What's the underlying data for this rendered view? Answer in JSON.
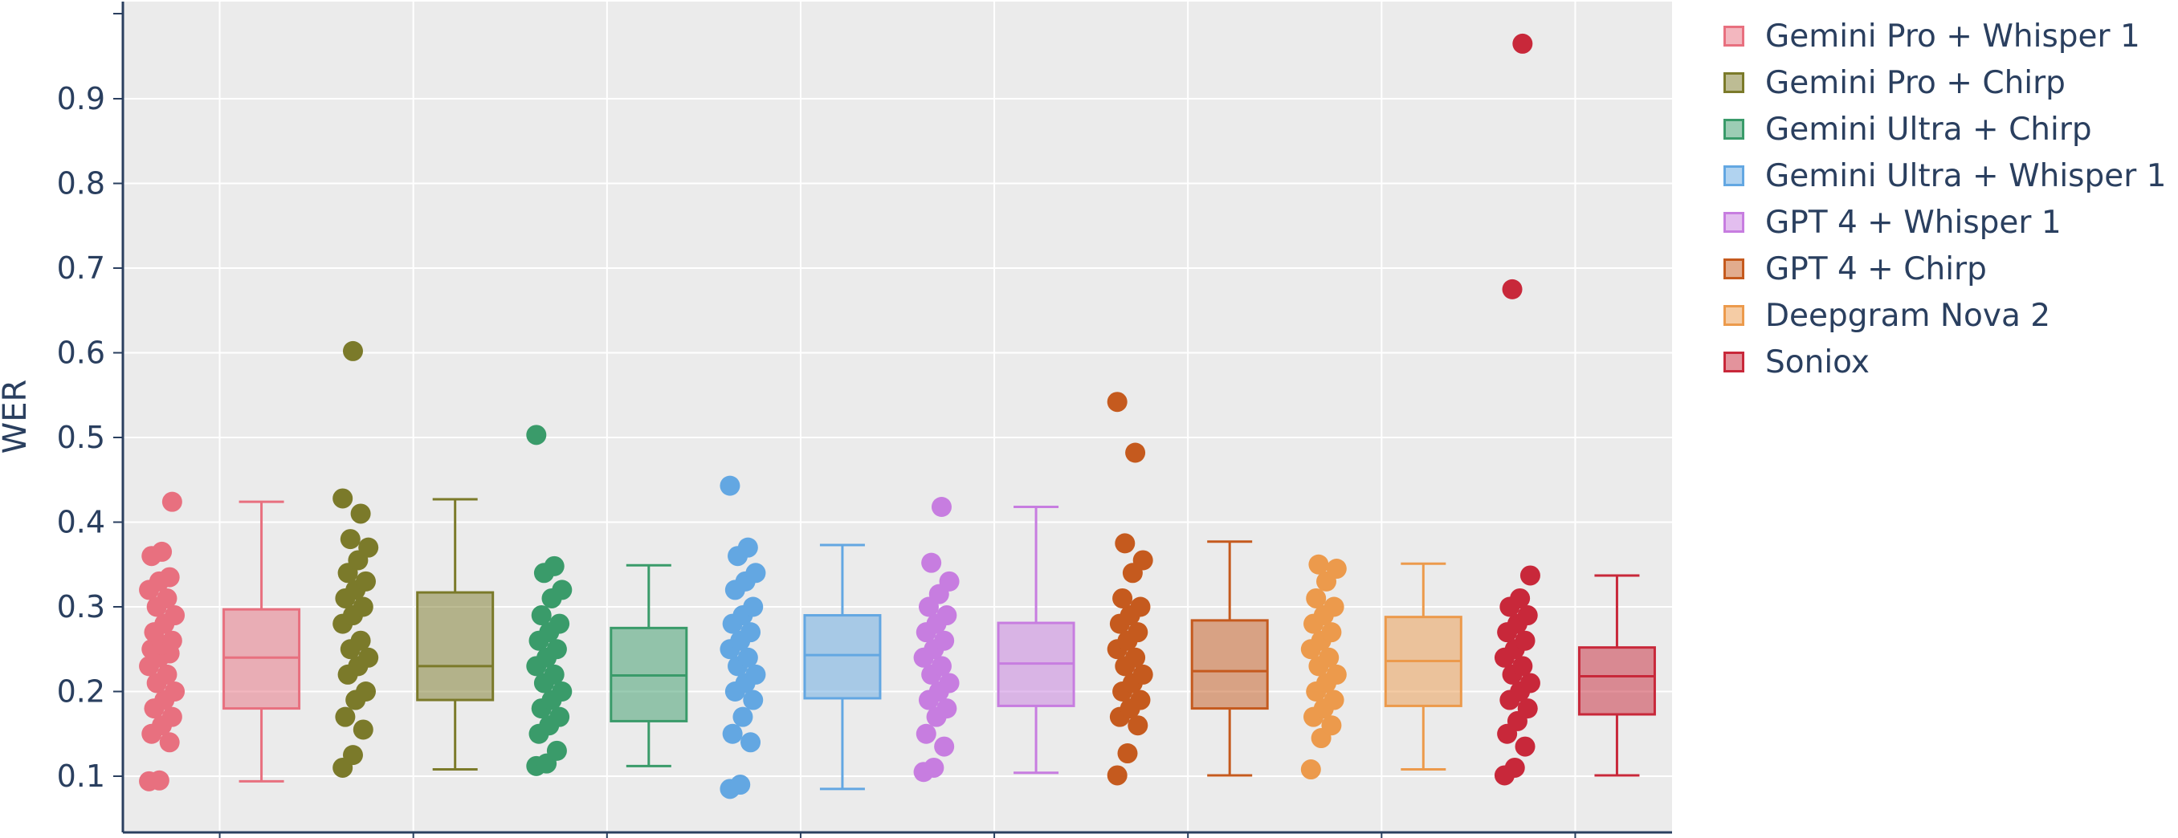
{
  "chart_data": {
    "type": "box",
    "title": "",
    "xlabel": "",
    "ylabel": "WER",
    "ylim": [
      0.05,
      1.0
    ],
    "yticks": [
      0.1,
      0.2,
      0.3,
      0.4,
      0.5,
      0.6,
      0.7,
      0.8,
      0.9
    ],
    "ytick_labels": [
      "0.1",
      "0.2",
      "0.3",
      "0.4",
      "0.5",
      "0.6",
      "0.7",
      "0.8",
      "0.9"
    ],
    "grid": true,
    "background": "#ebebeb",
    "legend_position": "right",
    "series": [
      {
        "name": "Gemini Pro + Whisper 1",
        "color": "#e8707f",
        "stats": {
          "min": 0.094,
          "q1": 0.18,
          "median": 0.24,
          "q3": 0.297,
          "max": 0.424
        },
        "points": [
          0.094,
          0.095,
          0.14,
          0.15,
          0.16,
          0.17,
          0.18,
          0.19,
          0.2,
          0.21,
          0.22,
          0.23,
          0.24,
          0.245,
          0.25,
          0.255,
          0.26,
          0.27,
          0.28,
          0.29,
          0.3,
          0.31,
          0.32,
          0.33,
          0.335,
          0.36,
          0.365,
          0.424
        ]
      },
      {
        "name": "Gemini Pro + Chirp",
        "color": "#7b7a2a",
        "stats": {
          "min": 0.108,
          "q1": 0.19,
          "median": 0.23,
          "q3": 0.317,
          "max": 0.427
        },
        "points": [
          0.11,
          0.125,
          0.155,
          0.17,
          0.19,
          0.2,
          0.22,
          0.23,
          0.24,
          0.25,
          0.26,
          0.28,
          0.29,
          0.3,
          0.31,
          0.32,
          0.33,
          0.34,
          0.355,
          0.37,
          0.38,
          0.41,
          0.428,
          0.602
        ]
      },
      {
        "name": "Gemini Ultra + Chirp",
        "color": "#3a9b6a",
        "stats": {
          "min": 0.112,
          "q1": 0.165,
          "median": 0.219,
          "q3": 0.275,
          "max": 0.349
        },
        "points": [
          0.112,
          0.115,
          0.13,
          0.15,
          0.16,
          0.17,
          0.18,
          0.19,
          0.2,
          0.21,
          0.22,
          0.23,
          0.24,
          0.25,
          0.26,
          0.27,
          0.28,
          0.29,
          0.31,
          0.32,
          0.34,
          0.348,
          0.503
        ]
      },
      {
        "name": "Gemini Ultra + Whisper 1",
        "color": "#63a7e2",
        "stats": {
          "min": 0.085,
          "q1": 0.192,
          "median": 0.243,
          "q3": 0.29,
          "max": 0.373
        },
        "points": [
          0.085,
          0.09,
          0.14,
          0.15,
          0.17,
          0.19,
          0.2,
          0.21,
          0.22,
          0.23,
          0.24,
          0.25,
          0.26,
          0.27,
          0.28,
          0.29,
          0.3,
          0.32,
          0.33,
          0.34,
          0.36,
          0.37,
          0.443
        ]
      },
      {
        "name": "GPT 4 + Whisper 1",
        "color": "#c77de0",
        "stats": {
          "min": 0.104,
          "q1": 0.183,
          "median": 0.233,
          "q3": 0.281,
          "max": 0.418
        },
        "points": [
          0.105,
          0.11,
          0.135,
          0.15,
          0.17,
          0.18,
          0.19,
          0.2,
          0.21,
          0.22,
          0.23,
          0.24,
          0.25,
          0.26,
          0.27,
          0.28,
          0.29,
          0.3,
          0.315,
          0.33,
          0.352,
          0.418
        ]
      },
      {
        "name": "GPT 4 + Chirp",
        "color": "#c55a1e",
        "stats": {
          "min": 0.101,
          "q1": 0.18,
          "median": 0.224,
          "q3": 0.284,
          "max": 0.377
        },
        "points": [
          0.101,
          0.127,
          0.16,
          0.17,
          0.18,
          0.19,
          0.2,
          0.21,
          0.22,
          0.23,
          0.24,
          0.25,
          0.26,
          0.27,
          0.28,
          0.29,
          0.3,
          0.31,
          0.34,
          0.355,
          0.375,
          0.482,
          0.542
        ]
      },
      {
        "name": "Deepgram Nova 2",
        "color": "#ec9a4c",
        "stats": {
          "min": 0.108,
          "q1": 0.183,
          "median": 0.236,
          "q3": 0.288,
          "max": 0.351
        },
        "points": [
          0.108,
          0.145,
          0.16,
          0.17,
          0.18,
          0.19,
          0.2,
          0.21,
          0.22,
          0.23,
          0.24,
          0.25,
          0.26,
          0.27,
          0.28,
          0.29,
          0.3,
          0.31,
          0.33,
          0.345,
          0.35
        ]
      },
      {
        "name": "Soniox",
        "color": "#c8283a",
        "stats": {
          "min": 0.101,
          "q1": 0.173,
          "median": 0.218,
          "q3": 0.252,
          "max": 0.337
        },
        "points": [
          0.101,
          0.11,
          0.135,
          0.15,
          0.165,
          0.18,
          0.19,
          0.2,
          0.21,
          0.22,
          0.23,
          0.24,
          0.25,
          0.26,
          0.27,
          0.28,
          0.29,
          0.3,
          0.31,
          0.337,
          0.675,
          0.965
        ]
      }
    ]
  }
}
